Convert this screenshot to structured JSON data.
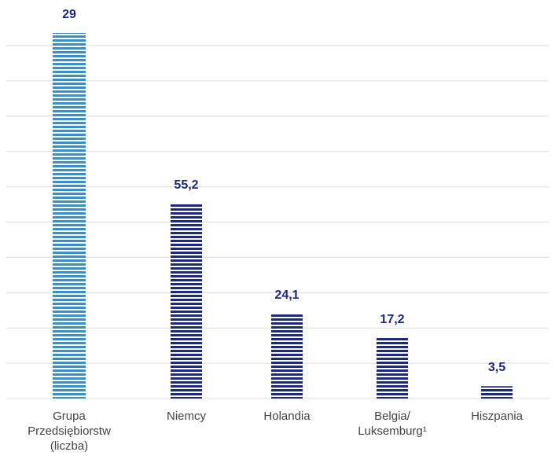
{
  "chart_data": {
    "type": "bar",
    "categories": [
      "Grupa\nPrzedsiębiorstw\n(liczba)",
      "Niemcy",
      "Holandia",
      "Belgia/\nLuksemburg¹",
      "Hiszpania"
    ],
    "series": [
      {
        "color": "#3a8fc8",
        "axis": "y2",
        "values": [
          29,
          null,
          null,
          null,
          null
        ],
        "value_labels": [
          "29",
          null,
          null,
          null,
          null
        ]
      },
      {
        "color": "#1b2a80",
        "values": [
          null,
          55.2,
          24.1,
          17.2,
          3.5
        ],
        "value_labels": [
          null,
          "55,2",
          "24,1",
          "17,2",
          "3,5"
        ]
      }
    ],
    "ylim": [
      0,
      100
    ],
    "yticks": [
      0,
      10,
      20,
      30,
      40,
      50,
      60,
      70,
      80,
      90,
      100
    ],
    "y2lim": [
      0,
      28
    ],
    "grid": true
  }
}
